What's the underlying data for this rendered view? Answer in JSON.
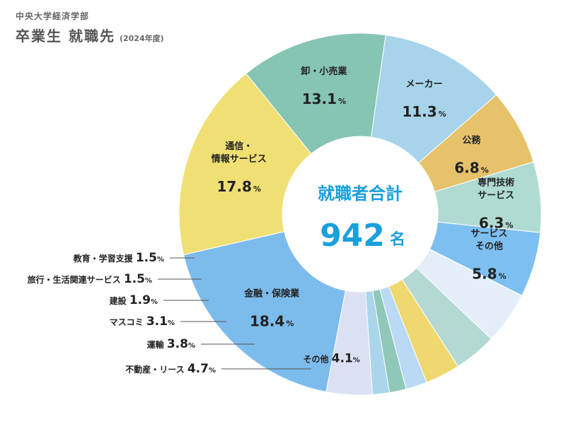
{
  "header": {
    "department": "中央大学経済学部",
    "title": "卒業生 就職先",
    "year": "(2024年度)"
  },
  "center": {
    "label": "就職者合計",
    "total": "942",
    "unit": "名"
  },
  "chart_data": {
    "type": "pie",
    "title": "卒業生 就職先",
    "unit": "%",
    "slices": [
      {
        "label": "通信・\n情報サービス",
        "value": 17.8,
        "color": "#f0df73"
      },
      {
        "label": "卸・小売業",
        "value": 13.1,
        "color": "#86c4b4"
      },
      {
        "label": "メーカー",
        "value": 11.3,
        "color": "#a7d4ea"
      },
      {
        "label": "公務",
        "value": 6.8,
        "color": "#e6c26b"
      },
      {
        "label": "専門技術\nサービス",
        "value": 6.3,
        "color": "#b0dbd3"
      },
      {
        "label": "サービス\nその他",
        "value": 5.8,
        "color": "#7dbff0"
      },
      {
        "label": "不動産・リース",
        "value": 4.7,
        "color": "#e3eef9"
      },
      {
        "label": "運輸",
        "value": 3.8,
        "color": "#b4d9d2"
      },
      {
        "label": "マスコミ",
        "value": 3.1,
        "color": "#efd870"
      },
      {
        "label": "建設",
        "value": 1.9,
        "color": "#b9d9f4"
      },
      {
        "label": "旅行・生活関連サービス",
        "value": 1.5,
        "color": "#8fc7b8"
      },
      {
        "label": "教育・学習支援",
        "value": 1.5,
        "color": "#a9d6ea"
      },
      {
        "label": "その他",
        "value": 4.1,
        "color": "#dbe0f2"
      },
      {
        "label": "金融・保険業",
        "value": 18.4,
        "color": "#7cbcec"
      }
    ]
  }
}
